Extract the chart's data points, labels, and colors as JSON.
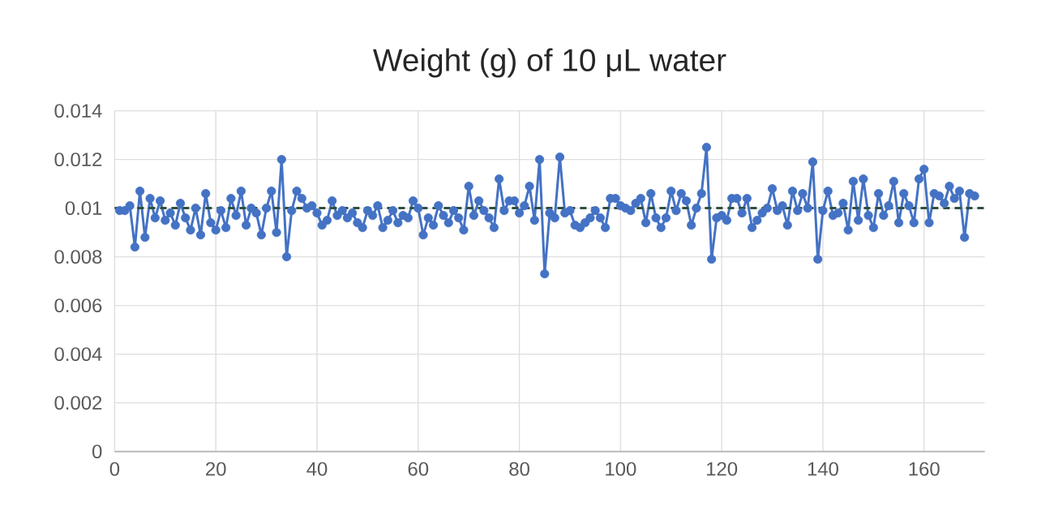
{
  "chart_data": {
    "type": "line",
    "title": "Weight (g) of 10 μL water",
    "x": [
      1,
      2,
      3,
      4,
      5,
      6,
      7,
      8,
      9,
      10,
      11,
      12,
      13,
      14,
      15,
      16,
      17,
      18,
      19,
      20,
      21,
      22,
      23,
      24,
      25,
      26,
      27,
      28,
      29,
      30,
      31,
      32,
      33,
      34,
      35,
      36,
      37,
      38,
      39,
      40,
      41,
      42,
      43,
      44,
      45,
      46,
      47,
      48,
      49,
      50,
      51,
      52,
      53,
      54,
      55,
      56,
      57,
      58,
      59,
      60,
      61,
      62,
      63,
      64,
      65,
      66,
      67,
      68,
      69,
      70,
      71,
      72,
      73,
      74,
      75,
      76,
      77,
      78,
      79,
      80,
      81,
      82,
      83,
      84,
      85,
      86,
      87,
      88,
      89,
      90,
      91,
      92,
      93,
      94,
      95,
      96,
      97,
      98,
      99,
      100,
      101,
      102,
      103,
      104,
      105,
      106,
      107,
      108,
      109,
      110,
      111,
      112,
      113,
      114,
      115,
      116,
      117,
      118,
      119,
      120,
      121,
      122,
      123,
      124,
      125,
      126,
      127,
      128,
      129,
      130,
      131,
      132,
      133,
      134,
      135,
      136,
      137,
      138,
      139,
      140,
      141,
      142,
      143,
      144,
      145,
      146,
      147,
      148,
      149,
      150,
      151,
      152,
      153,
      154,
      155,
      156,
      157,
      158,
      159,
      160,
      161,
      162,
      163,
      164,
      165,
      166,
      167,
      168,
      169,
      170
    ],
    "series": [
      {
        "color": "#4472c4",
        "values": [
          0.0099,
          0.0099,
          0.0101,
          0.0084,
          0.0107,
          0.0088,
          0.0104,
          0.0096,
          0.0103,
          0.0095,
          0.0098,
          0.0093,
          0.0102,
          0.0096,
          0.0091,
          0.01,
          0.0089,
          0.0106,
          0.0094,
          0.0091,
          0.0099,
          0.0092,
          0.0104,
          0.0097,
          0.0107,
          0.0093,
          0.01,
          0.0098,
          0.0089,
          0.01,
          0.0107,
          0.009,
          0.012,
          0.008,
          0.0099,
          0.0107,
          0.0104,
          0.01,
          0.0101,
          0.0098,
          0.0093,
          0.0095,
          0.0103,
          0.0097,
          0.0099,
          0.0096,
          0.0098,
          0.0094,
          0.0092,
          0.0099,
          0.0097,
          0.0101,
          0.0092,
          0.0095,
          0.0099,
          0.0094,
          0.0097,
          0.0096,
          0.0103,
          0.01,
          0.0089,
          0.0096,
          0.0093,
          0.0101,
          0.0097,
          0.0094,
          0.0099,
          0.0096,
          0.0091,
          0.0109,
          0.0097,
          0.0103,
          0.0099,
          0.0096,
          0.0092,
          0.0112,
          0.0099,
          0.0103,
          0.0103,
          0.0098,
          0.0101,
          0.0109,
          0.0095,
          0.012,
          0.0073,
          0.0098,
          0.0096,
          0.0121,
          0.0098,
          0.0099,
          0.0093,
          0.0092,
          0.0094,
          0.0096,
          0.0099,
          0.0096,
          0.0092,
          0.0104,
          0.0104,
          0.0101,
          0.01,
          0.0099,
          0.0102,
          0.0104,
          0.0094,
          0.0106,
          0.0096,
          0.0092,
          0.0096,
          0.0107,
          0.0099,
          0.0106,
          0.0103,
          0.0093,
          0.01,
          0.0106,
          0.0125,
          0.0079,
          0.0096,
          0.0097,
          0.0095,
          0.0104,
          0.0104,
          0.0098,
          0.0104,
          0.0092,
          0.0095,
          0.0098,
          0.01,
          0.0108,
          0.0099,
          0.0101,
          0.0093,
          0.0107,
          0.0099,
          0.0106,
          0.01,
          0.0119,
          0.0079,
          0.0099,
          0.0107,
          0.0097,
          0.0098,
          0.0102,
          0.0091,
          0.0111,
          0.0095,
          0.0112,
          0.0097,
          0.0092,
          0.0106,
          0.0097,
          0.0101,
          0.0111,
          0.0094,
          0.0106,
          0.0101,
          0.0094,
          0.0112,
          0.0116,
          0.0094,
          0.0106,
          0.0105,
          0.0102,
          0.0109,
          0.0104,
          0.0107,
          0.0088,
          0.0106,
          0.0105
        ]
      },
      {
        "type": "line",
        "x": [
          0,
          172
        ],
        "values": [
          0.01,
          0.01
        ],
        "color": "#2f4f3f",
        "line_style": "dashed",
        "marker": "none"
      }
    ],
    "marker": "circle",
    "grid": true,
    "xlim": [
      0,
      172
    ],
    "xticks": [
      0,
      20,
      40,
      60,
      80,
      100,
      120,
      140,
      160
    ],
    "ylim": [
      0,
      0.014
    ],
    "yticks": [
      0,
      0.002,
      0.004,
      0.006,
      0.008,
      0.01,
      0.012,
      0.014
    ]
  }
}
